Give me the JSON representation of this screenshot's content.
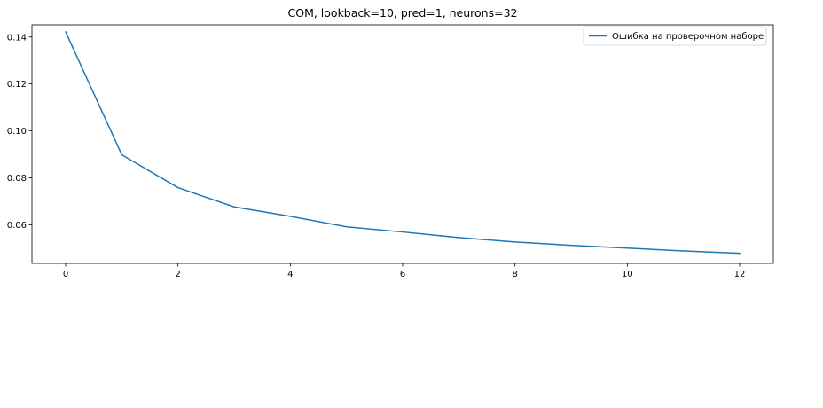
{
  "chart_data": {
    "type": "line",
    "title": "COM, lookback=10, pred=1, neurons=32",
    "xlabel": "",
    "ylabel": "",
    "xlim": [
      -0.6,
      12.6
    ],
    "ylim": [
      0.0435,
      0.1452
    ],
    "x_ticks": [
      0,
      2,
      4,
      6,
      8,
      10,
      12
    ],
    "y_ticks": [
      0.06,
      0.08,
      0.1,
      0.12,
      0.14
    ],
    "y_tick_labels": [
      "0.06",
      "0.08",
      "0.10",
      "0.12",
      "0.14"
    ],
    "grid": false,
    "legend_position": "upper right",
    "series": [
      {
        "name": "Ошибка на проверочном наборе",
        "color": "#1f77b4",
        "x": [
          0,
          1,
          2,
          3,
          4,
          5,
          6,
          7,
          8,
          9,
          10,
          11,
          12
        ],
        "y": [
          0.1422,
          0.0898,
          0.0758,
          0.0676,
          0.0636,
          0.0591,
          0.0569,
          0.0545,
          0.0526,
          0.0512,
          0.05,
          0.0488,
          0.0478
        ]
      }
    ]
  }
}
